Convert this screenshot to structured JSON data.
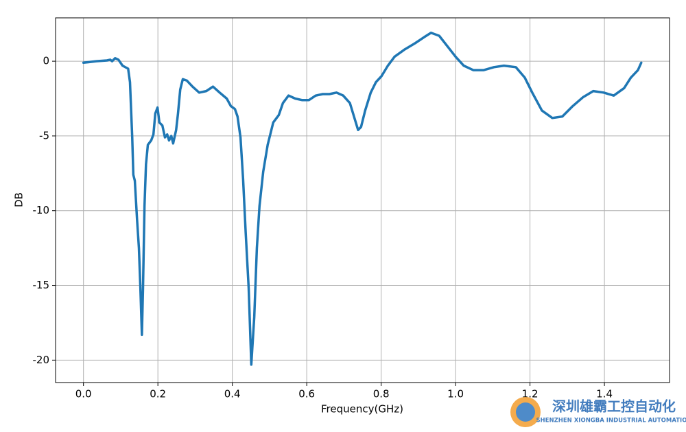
{
  "chart_data": {
    "type": "line",
    "xlabel": "Frequency(GHz)",
    "ylabel": "DB",
    "xlim": [
      -0.075,
      1.575
    ],
    "ylim": [
      -21.5,
      2.9
    ],
    "xticks": [
      {
        "value": 0,
        "label": "0.0"
      },
      0.2,
      0.4,
      0.6,
      0.8,
      {
        "value": 1,
        "label": "1.0"
      },
      1.2,
      1.4
    ],
    "yticks": [
      0,
      -5,
      -10,
      -15,
      -20
    ],
    "grid": true,
    "series": [
      {
        "color": "#1f77b4",
        "x": [
          0,
          0.035,
          0.063,
          0.072,
          0.077,
          0.085,
          0.094,
          0.105,
          0.12,
          0.125,
          0.131,
          0.134,
          0.138,
          0.144,
          0.149,
          0.153,
          0.157,
          0.16,
          0.164,
          0.168,
          0.173,
          0.182,
          0.188,
          0.193,
          0.199,
          0.204,
          0.212,
          0.219,
          0.225,
          0.23,
          0.236,
          0.241,
          0.249,
          0.254,
          0.26,
          0.267,
          0.278,
          0.293,
          0.311,
          0.33,
          0.348,
          0.366,
          0.385,
          0.396,
          0.407,
          0.414,
          0.422,
          0.429,
          0.436,
          0.444,
          0.451,
          0.459,
          0.466,
          0.473,
          0.483,
          0.495,
          0.51,
          0.525,
          0.536,
          0.551,
          0.569,
          0.587,
          0.606,
          0.624,
          0.643,
          0.661,
          0.68,
          0.698,
          0.716,
          0.727,
          0.738,
          0.746,
          0.757,
          0.772,
          0.786,
          0.801,
          0.818,
          0.836,
          0.864,
          0.891,
          0.915,
          0.934,
          0.956,
          0.978,
          1.0,
          1.022,
          1.048,
          1.075,
          1.103,
          1.13,
          1.162,
          1.186,
          1.206,
          1.232,
          1.26,
          1.287,
          1.315,
          1.343,
          1.37,
          1.398,
          1.425,
          1.453,
          1.471,
          1.49,
          1.499
        ],
        "values": [
          -0.1,
          0,
          0.05,
          0.1,
          0,
          0.2,
          0.1,
          -0.3,
          -0.5,
          -1.4,
          -5.1,
          -7.6,
          -8,
          -10.6,
          -12.5,
          -15.2,
          -18.3,
          -15.2,
          -9.7,
          -6.9,
          -5.6,
          -5.3,
          -4.9,
          -3.5,
          -3.1,
          -4.1,
          -4.3,
          -5.1,
          -4.9,
          -5.3,
          -5,
          -5.5,
          -4.6,
          -3.5,
          -1.9,
          -1.2,
          -1.3,
          -1.7,
          -2.1,
          -2,
          -1.7,
          -2.1,
          -2.5,
          -3,
          -3.2,
          -3.7,
          -5.1,
          -7.9,
          -11.5,
          -15.2,
          -20.3,
          -17.1,
          -12.5,
          -9.7,
          -7.4,
          -5.6,
          -4.1,
          -3.6,
          -2.8,
          -2.3,
          -2.5,
          -2.6,
          -2.6,
          -2.3,
          -2.2,
          -2.2,
          -2.1,
          -2.3,
          -2.8,
          -3.7,
          -4.6,
          -4.4,
          -3.3,
          -2.1,
          -1.4,
          -1,
          -0.3,
          0.3,
          0.8,
          1.2,
          1.6,
          1.9,
          1.7,
          1,
          0.3,
          -0.3,
          -0.6,
          -0.6,
          -0.4,
          -0.3,
          -0.4,
          -1.1,
          -2.1,
          -3.3,
          -3.8,
          -3.7,
          -3,
          -2.4,
          -2,
          -2.1,
          -2.3,
          -1.8,
          -1.1,
          -0.6,
          -0.1
        ]
      }
    ],
    "watermark": {
      "title": "深圳雄霸工控自动化",
      "subtitle": "SHENZHEN XIONGBA INDUSTRIAL AUTOMATION"
    }
  }
}
